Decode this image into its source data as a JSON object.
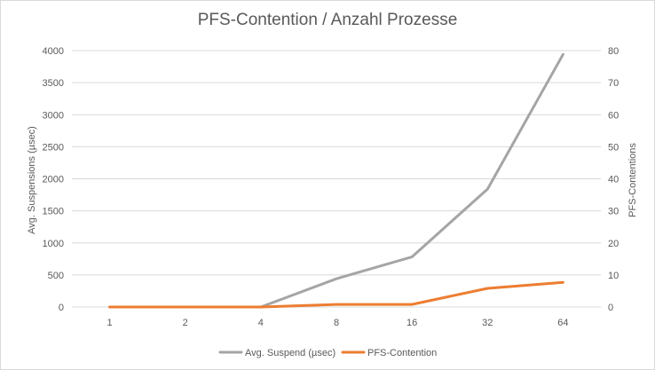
{
  "chart_data": {
    "type": "line",
    "title": "PFS-Contention / Anzahl Prozesse",
    "x": [
      "1",
      "2",
      "4",
      "8",
      "16",
      "32",
      "64"
    ],
    "series": [
      {
        "name": "Avg. Suspend (µsec)",
        "axis": "left",
        "color": "#a5a5a5",
        "values": [
          0,
          0,
          0,
          440,
          780,
          1840,
          3940
        ]
      },
      {
        "name": "PFS-Contention",
        "axis": "right",
        "color": "#ed7d31",
        "values": [
          0,
          0,
          0,
          0.8,
          0.8,
          5.8,
          7.7
        ]
      }
    ],
    "ylabel": "Avg. Suspensions (µsec)",
    "ylabel_right": "PFS-Contentions",
    "ylim": [
      0,
      4000
    ],
    "ylim_right": [
      0,
      80
    ],
    "yticks": [
      "0",
      "500",
      "1000",
      "1500",
      "2000",
      "2500",
      "3000",
      "3500",
      "4000"
    ],
    "yticks_right": [
      "0",
      "10",
      "20",
      "30",
      "40",
      "50",
      "60",
      "70",
      "80"
    ],
    "grid": true,
    "legend": "bottom"
  }
}
